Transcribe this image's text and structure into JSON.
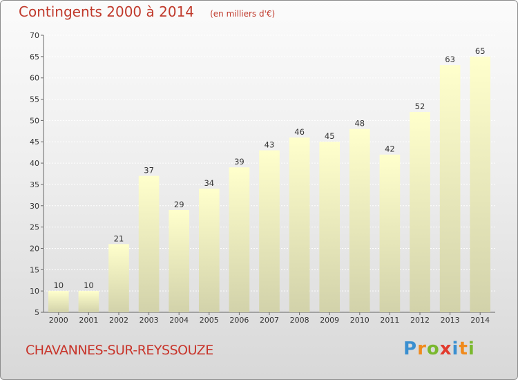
{
  "title": "Contingents 2000 à 2014",
  "unit": "(en milliers d'€)",
  "commune": "CHAVANNES-SUR-REYSSOUZE",
  "brand": {
    "letters": [
      {
        "ch": "P",
        "color": "#3a8fd0"
      },
      {
        "ch": "r",
        "color": "#f08a1c"
      },
      {
        "ch": "o",
        "color": "#7ab82e"
      },
      {
        "ch": "x",
        "color": "#e23b2e"
      },
      {
        "ch": "i",
        "color": "#3a8fd0"
      },
      {
        "ch": "t",
        "color": "#f08a1c"
      },
      {
        "ch": "i",
        "color": "#7ab82e"
      }
    ]
  },
  "colors": {
    "title": "#c0392b",
    "bar_top": "#ffffcc",
    "bar_bottom": "#d2d2aa",
    "grid": "#ffffff",
    "axis": "#666666"
  },
  "chart_data": {
    "type": "bar",
    "title": "Contingents 2000 à 2014",
    "subtitle": "(en milliers d'€)",
    "categories": [
      "2000",
      "2001",
      "2002",
      "2003",
      "2004",
      "2005",
      "2006",
      "2007",
      "2008",
      "2009",
      "2010",
      "2011",
      "2012",
      "2013",
      "2014"
    ],
    "values": [
      10,
      10,
      21,
      37,
      29,
      34,
      39,
      43,
      46,
      45,
      48,
      42,
      52,
      63,
      65
    ],
    "ylim": [
      5,
      70
    ],
    "yticks": [
      5,
      10,
      15,
      20,
      25,
      30,
      35,
      40,
      45,
      50,
      55,
      60,
      65,
      70
    ],
    "grid": true,
    "xlabel": "",
    "ylabel": ""
  }
}
